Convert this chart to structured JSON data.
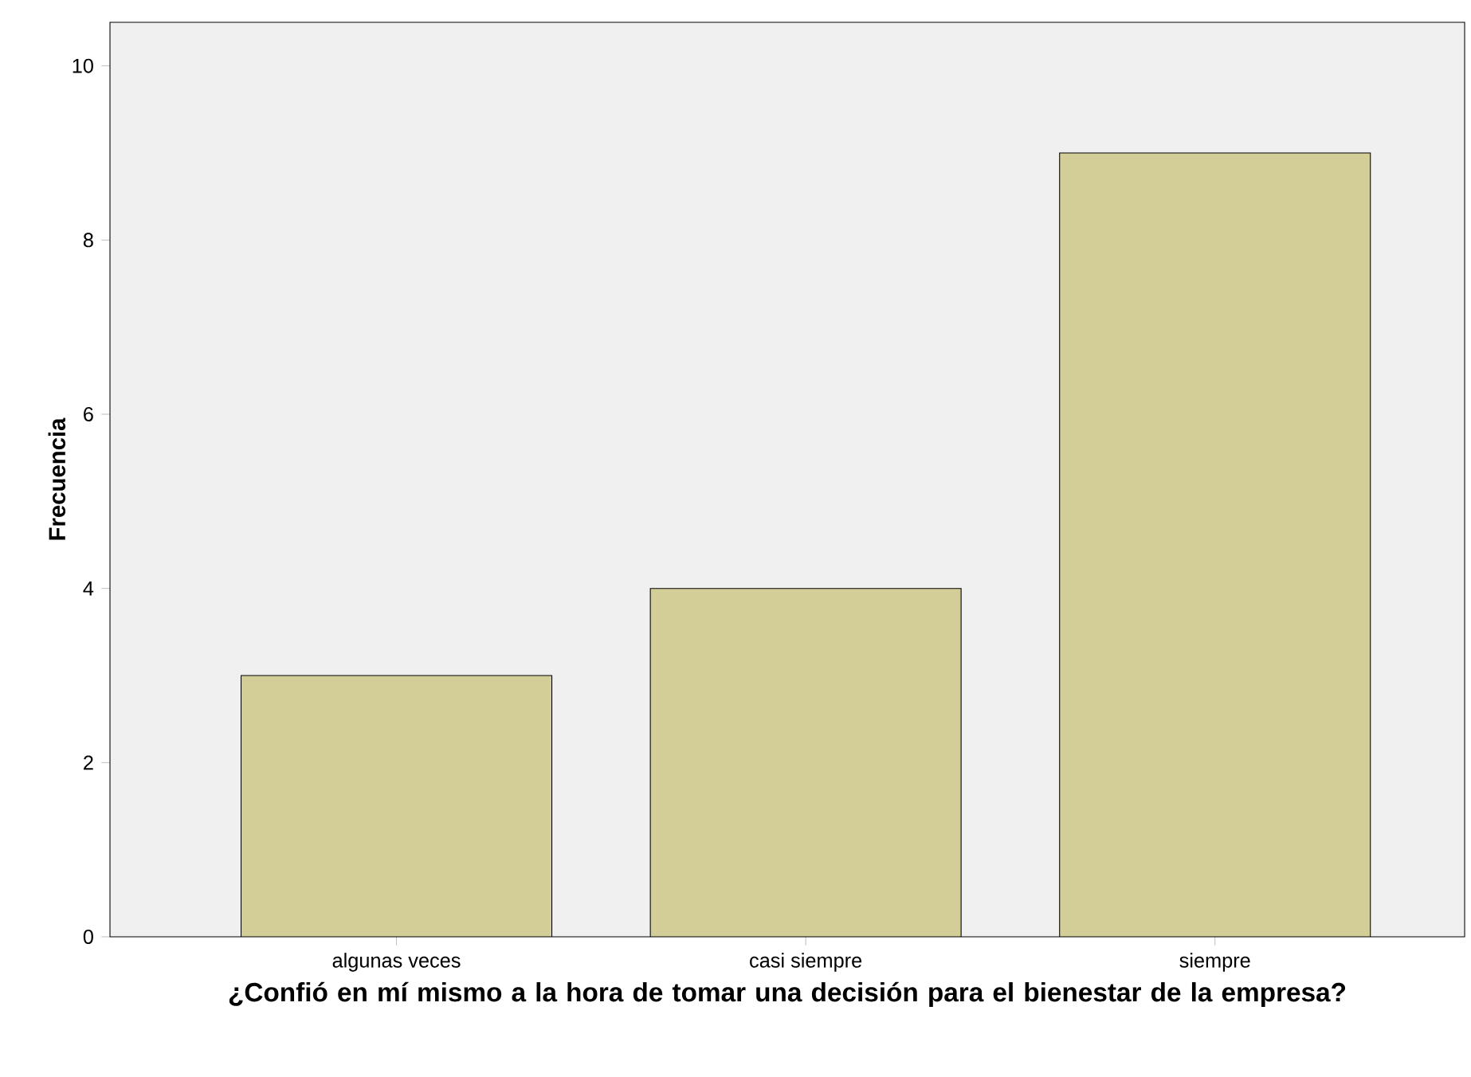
{
  "chart_data": {
    "type": "bar",
    "xlabel": "¿Confió en mí mismo a la hora de tomar una decisión para el bienestar de la empresa?",
    "ylabel": "Frecuencia",
    "categories": [
      "algunas veces",
      "casi siempre",
      "siempre"
    ],
    "values": [
      3,
      4,
      9
    ],
    "color": "#d3ce97",
    "ylim": [
      0,
      10.5
    ],
    "yticks": [
      0,
      2,
      4,
      6,
      8,
      10
    ],
    "grid": false
  }
}
